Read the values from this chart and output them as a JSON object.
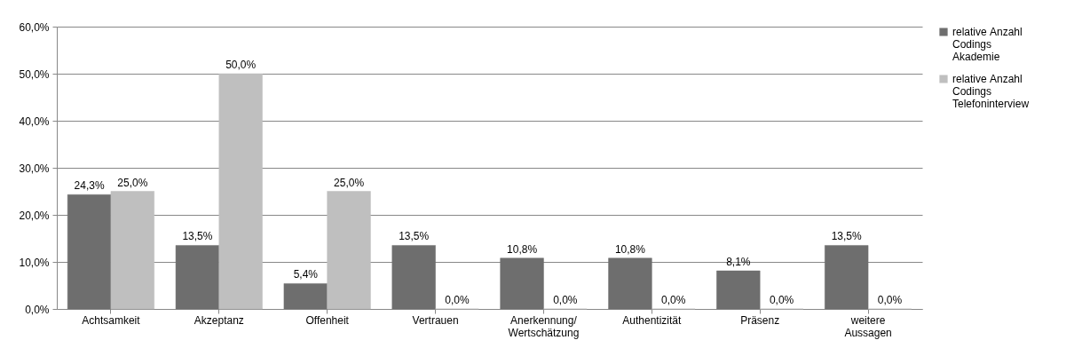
{
  "chart_data": {
    "type": "bar",
    "categories": [
      "Achtsamkeit",
      "Akzeptanz",
      "Offenheit",
      "Vertrauen",
      "Anerkennung/ Wertschätzung",
      "Authentizität",
      "Präsenz",
      "weitere Aussagen"
    ],
    "series": [
      {
        "name": "relative Anzahl Codings Akademie",
        "color": "#6e6e6e",
        "values": [
          24.3,
          13.5,
          5.4,
          13.5,
          10.8,
          10.8,
          8.1,
          13.5
        ],
        "value_labels": [
          "24,3%",
          "13,5%",
          "5,4%",
          "13,5%",
          "10,8%",
          "10,8%",
          "8,1%",
          "13,5%"
        ]
      },
      {
        "name": "relative Anzahl Codings Telefoninterview",
        "color": "#bfbfbf",
        "values": [
          25,
          50,
          25,
          0,
          0,
          0,
          0,
          0
        ],
        "value_labels": [
          "25,0%",
          "50,0%",
          "25,0%",
          "0,0%",
          "0,0%",
          "0,0%",
          "0,0%",
          "0,0%"
        ]
      }
    ],
    "ylim": [
      0,
      60
    ],
    "yticks": [
      {
        "value": 0,
        "label": "0,0%"
      },
      {
        "value": 10,
        "label": "10,0%"
      },
      {
        "value": 20,
        "label": "20,0%"
      },
      {
        "value": 30,
        "label": "30,0%"
      },
      {
        "value": 40,
        "label": "40,0%"
      },
      {
        "value": 50,
        "label": "50,0%"
      },
      {
        "value": 60,
        "label": "60,0%"
      }
    ],
    "grid": "y",
    "legend": "right"
  }
}
